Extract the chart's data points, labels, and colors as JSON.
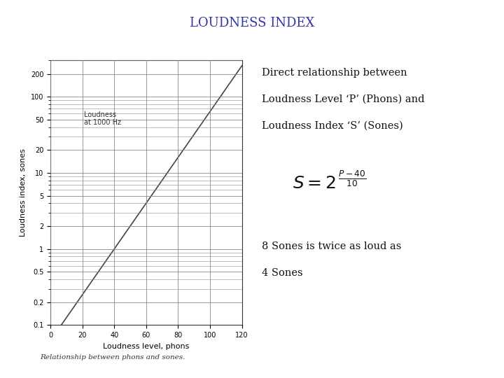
{
  "title": "LOUDNESS INDEX",
  "title_color": "#3333aa",
  "title_fontsize": 13,
  "graph_xlabel": "Loudness level, phons",
  "graph_ylabel": "Loudness index, sones",
  "graph_label_inside": "Loudness\nat 1000 Hz",
  "graph_caption": "Relationship between phons and sones.",
  "text_line1": "Direct relationship between",
  "text_line2": "Loudness Level ‘P’ (Phons) and",
  "text_line3": "Loudness Index ‘S’ (Sones)",
  "text_line4": "8 Sones is twice as loud as",
  "text_line5": "4 Sones",
  "bg_color": "#ffffff",
  "plot_bg_color": "#ffffff",
  "line_color": "#444444",
  "grid_color": "#888888",
  "yticks": [
    0.1,
    0.2,
    0.5,
    1,
    2,
    5,
    10,
    20,
    50,
    100,
    200
  ],
  "ytick_labels": [
    "0.1",
    "0.2",
    "0.5",
    "1",
    "2",
    "5",
    "10",
    "20",
    "50",
    "100",
    "200"
  ],
  "xticks": [
    0,
    20,
    40,
    60,
    80,
    100,
    120
  ],
  "xlim": [
    0,
    120
  ],
  "ylim_log": [
    0.1,
    300
  ]
}
